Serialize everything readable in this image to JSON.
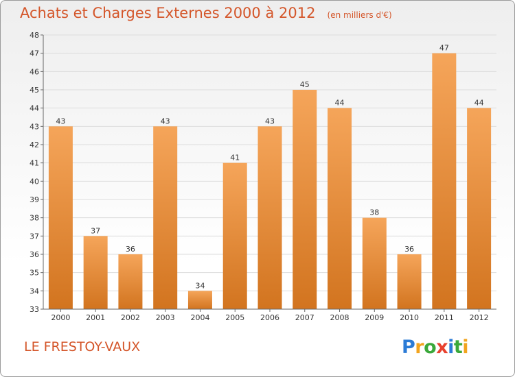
{
  "title": "Achats et Charges Externes 2000 à 2012",
  "unit": "(en milliers d'€)",
  "commune": "LE FRESTOY-VAUX",
  "brand": {
    "letters": [
      "P",
      "r",
      "o",
      "x",
      "i",
      "t",
      "i"
    ],
    "colors": [
      "#2b7bd6",
      "#f2a41e",
      "#3aa83a",
      "#e8412e",
      "#2b7bd6",
      "#3aa83a",
      "#f2a41e"
    ]
  },
  "colors": {
    "bar_top": "#f5a55a",
    "bar_bottom": "#d2741f",
    "title": "#d4562a",
    "grid": "#dcdcdc"
  },
  "chart_data": {
    "type": "bar",
    "categories": [
      "2000",
      "2001",
      "2002",
      "2003",
      "2004",
      "2005",
      "2006",
      "2007",
      "2008",
      "2009",
      "2010",
      "2011",
      "2012"
    ],
    "values": [
      43,
      37,
      36,
      43,
      34,
      41,
      43,
      45,
      44,
      38,
      36,
      47,
      44
    ],
    "title": "Achats et Charges Externes 2000 à 2012",
    "ylim": [
      33,
      48
    ],
    "yticks": [
      33,
      34,
      35,
      36,
      37,
      38,
      39,
      40,
      41,
      42,
      43,
      44,
      45,
      46,
      47,
      48
    ],
    "grid": true,
    "legend": false
  }
}
